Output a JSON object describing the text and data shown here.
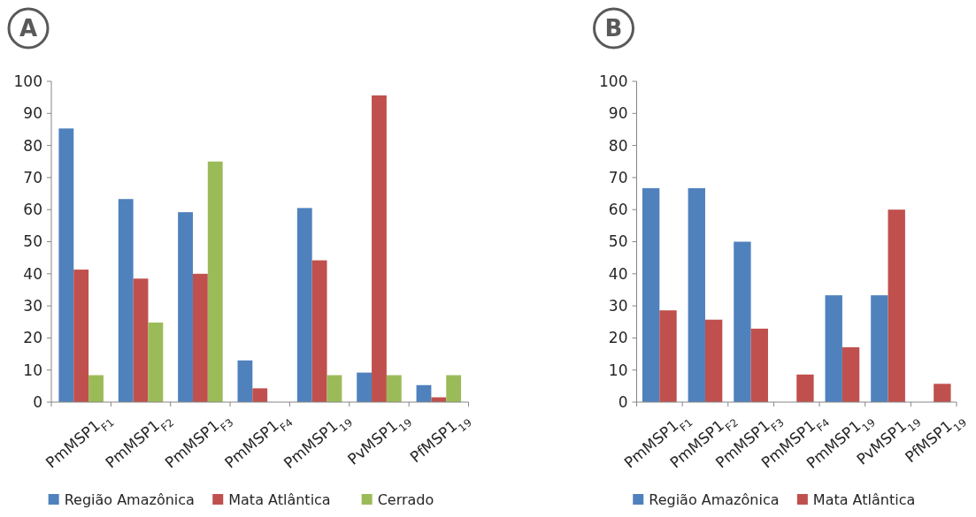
{
  "chart_data": [
    {
      "type": "bar",
      "title": "A",
      "categories": [
        "PmMSP1$_{F1}$",
        "PmMSP1$_{F2}$",
        "PmMSP1$_{F3}$",
        "PmMSP1$_{F4}$",
        "PmMSP1$_{19}$",
        "PvMSP1$_{19}$",
        "PfMSP1$_{19}$"
      ],
      "series": [
        {
          "name": "Região Amazônica",
          "color": "#4f81bd",
          "values": [
            85.3,
            63.3,
            59.2,
            13,
            60.5,
            9.2,
            5.3
          ]
        },
        {
          "name": "Mata Atlântica",
          "color": "#c0504d",
          "values": [
            41.3,
            38.5,
            40,
            4.3,
            44.2,
            95.6,
            1.5
          ]
        },
        {
          "name": "Cerrado",
          "color": "#9bbb59",
          "values": [
            8.4,
            24.8,
            75,
            null,
            8.4,
            8.4,
            8.4
          ]
        }
      ],
      "ylim": [
        0,
        100
      ],
      "yticks": [
        0,
        10,
        20,
        30,
        40,
        50,
        60,
        70,
        80,
        90,
        100
      ],
      "grid": false,
      "legend": "bottom"
    },
    {
      "type": "bar",
      "title": "B",
      "categories": [
        "PmMSP1$_{F1}$",
        "PmMSP1$_{F2}$",
        "PmMSP1$_{F3}$",
        "PmMSP1$_{F4}$",
        "PmMSP1$_{19}$",
        "PvMSP1$_{19}$",
        "PfMSP1$_{19}$"
      ],
      "series": [
        {
          "name": "Região Amazônica",
          "color": "#4f81bd",
          "values": [
            66.7,
            66.7,
            50,
            null,
            33.3,
            33.3,
            null
          ]
        },
        {
          "name": "Mata Atlântica",
          "color": "#c0504d",
          "values": [
            28.6,
            25.7,
            22.9,
            8.6,
            17.1,
            60,
            5.7
          ]
        }
      ],
      "ylim": [
        0,
        100
      ],
      "yticks": [
        0,
        10,
        20,
        30,
        40,
        50,
        60,
        70,
        80,
        90,
        100
      ],
      "grid": false,
      "legend": "bottom"
    }
  ]
}
